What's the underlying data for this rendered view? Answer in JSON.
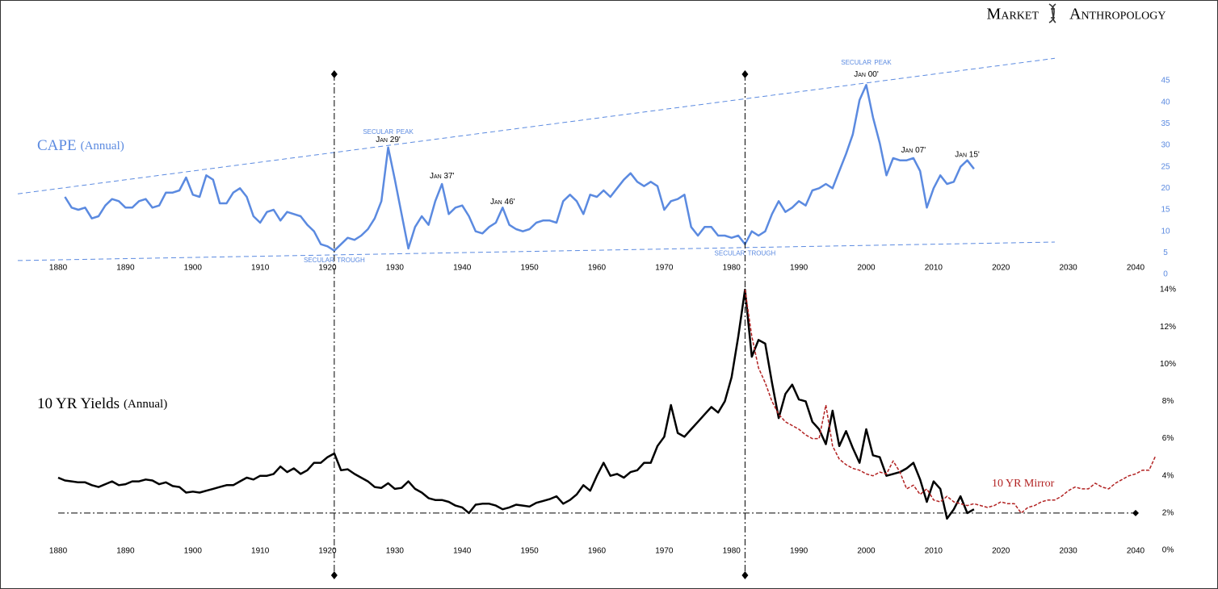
{
  "brand": {
    "left": "Market",
    "right": "Anthropology"
  },
  "chart_data": [
    {
      "type": "line",
      "series": [
        {
          "name": "CAPE",
          "name_suffix": "(Annual)",
          "color": "#5b8ae0",
          "x": [
            1881,
            1882,
            1883,
            1884,
            1885,
            1886,
            1887,
            1888,
            1889,
            1890,
            1891,
            1892,
            1893,
            1894,
            1895,
            1896,
            1897,
            1898,
            1899,
            1900,
            1901,
            1902,
            1903,
            1904,
            1905,
            1906,
            1907,
            1908,
            1909,
            1910,
            1911,
            1912,
            1913,
            1914,
            1915,
            1916,
            1917,
            1918,
            1919,
            1920,
            1921,
            1922,
            1923,
            1924,
            1925,
            1926,
            1927,
            1928,
            1929,
            1930,
            1931,
            1932,
            1933,
            1934,
            1935,
            1936,
            1937,
            1938,
            1939,
            1940,
            1941,
            1942,
            1943,
            1944,
            1945,
            1946,
            1947,
            1948,
            1949,
            1950,
            1951,
            1952,
            1953,
            1954,
            1955,
            1956,
            1957,
            1958,
            1959,
            1960,
            1961,
            1962,
            1963,
            1964,
            1965,
            1966,
            1967,
            1968,
            1969,
            1970,
            1971,
            1972,
            1973,
            1974,
            1975,
            1976,
            1977,
            1978,
            1979,
            1980,
            1981,
            1982,
            1983,
            1984,
            1985,
            1986,
            1987,
            1988,
            1989,
            1990,
            1991,
            1992,
            1993,
            1994,
            1995,
            1996,
            1997,
            1998,
            1999,
            2000,
            2001,
            2002,
            2003,
            2004,
            2005,
            2006,
            2007,
            2008,
            2009,
            2010,
            2011,
            2012,
            2013,
            2014,
            2015,
            2016
          ],
          "values": [
            18,
            15.5,
            15,
            15.5,
            13,
            13.5,
            16,
            17.5,
            17,
            15.5,
            15.5,
            17,
            17.5,
            15.5,
            16,
            19,
            19,
            19.5,
            22.5,
            18.5,
            18,
            23,
            22,
            16.5,
            16.5,
            19,
            20,
            18,
            13.5,
            12,
            14.5,
            15,
            12.5,
            14.5,
            14,
            13.5,
            11.5,
            10,
            7,
            6.5,
            5.5,
            7,
            8.5,
            8,
            9,
            10.5,
            13,
            17,
            29.5,
            22,
            14,
            6,
            11,
            13.5,
            11.5,
            17,
            21,
            14,
            15.5,
            16,
            13.5,
            10,
            9.5,
            11,
            12,
            15.5,
            11.5,
            10.5,
            10,
            10.5,
            12,
            12.5,
            12.5,
            12,
            17,
            18.5,
            17,
            14,
            18.5,
            18,
            19.5,
            18,
            20,
            22,
            23.5,
            21.5,
            20.5,
            21.5,
            20.5,
            15,
            17,
            17.5,
            18.5,
            11,
            9,
            11,
            11,
            9,
            9,
            8.5,
            9,
            7,
            10,
            9,
            10,
            14,
            17,
            14.5,
            15.5,
            17,
            16,
            19.5,
            20,
            21,
            20,
            24,
            28,
            32.5,
            40.5,
            44,
            36.5,
            30.5,
            23,
            27,
            26.5,
            26.5,
            27,
            24,
            15.5,
            20,
            23,
            21,
            21.5,
            25,
            26.5,
            24.5
          ]
        }
      ],
      "trend_lines": [
        {
          "x": [
            1874,
            2028
          ],
          "y": [
            18.7,
            50.2
          ]
        },
        {
          "x": [
            1874,
            2028
          ],
          "y": [
            3.2,
            7.5
          ]
        }
      ],
      "annotations": [
        {
          "text": "Secular Peak",
          "x": 1929,
          "y": 33.2,
          "style": "phase"
        },
        {
          "text": "Jan 29'",
          "x": 1929,
          "y": 31.2,
          "style": "date"
        },
        {
          "text": "Secular Trough",
          "x": 1921,
          "y": 3.4,
          "style": "phase"
        },
        {
          "text": "Jan 37'",
          "x": 1937,
          "y": 22.8,
          "style": "date"
        },
        {
          "text": "Jan 46'",
          "x": 1946,
          "y": 16.8,
          "style": "date"
        },
        {
          "text": "Secular Trough",
          "x": 1982,
          "y": 5,
          "style": "phase"
        },
        {
          "text": "Secular Peak",
          "x": 2000,
          "y": 49.3,
          "style": "phase"
        },
        {
          "text": "Jan 00'",
          "x": 2000,
          "y": 46.4,
          "style": "date"
        },
        {
          "text": "Jan 07'",
          "x": 2007,
          "y": 28.8,
          "style": "date"
        },
        {
          "text": "Jan 15'",
          "x": 2015,
          "y": 27.8,
          "style": "date"
        }
      ],
      "xlim": [
        1874,
        2043
      ],
      "xticks": [
        1880,
        1890,
        1900,
        1910,
        1920,
        1930,
        1940,
        1950,
        1960,
        1970,
        1980,
        1990,
        2000,
        2010,
        2020,
        2030,
        2040
      ],
      "ylim": [
        0,
        45
      ],
      "yticks": [
        0,
        5,
        10,
        15,
        20,
        25,
        30,
        35,
        40,
        45
      ]
    },
    {
      "type": "line",
      "series": [
        {
          "name": "10 YR Yields",
          "name_suffix": "(Annual)",
          "color": "#000000",
          "x": [
            1880,
            1881,
            1882,
            1883,
            1884,
            1885,
            1886,
            1887,
            1888,
            1889,
            1890,
            1891,
            1892,
            1893,
            1894,
            1895,
            1896,
            1897,
            1898,
            1899,
            1900,
            1901,
            1902,
            1903,
            1904,
            1905,
            1906,
            1907,
            1908,
            1909,
            1910,
            1911,
            1912,
            1913,
            1914,
            1915,
            1916,
            1917,
            1918,
            1919,
            1920,
            1921,
            1922,
            1923,
            1924,
            1925,
            1926,
            1927,
            1928,
            1929,
            1930,
            1931,
            1932,
            1933,
            1934,
            1935,
            1936,
            1937,
            1938,
            1939,
            1940,
            1941,
            1942,
            1943,
            1944,
            1945,
            1946,
            1947,
            1948,
            1949,
            1950,
            1951,
            1952,
            1953,
            1954,
            1955,
            1956,
            1957,
            1958,
            1959,
            1960,
            1961,
            1962,
            1963,
            1964,
            1965,
            1966,
            1967,
            1968,
            1969,
            1970,
            1971,
            1972,
            1973,
            1974,
            1975,
            1976,
            1977,
            1978,
            1979,
            1980,
            1981,
            1982,
            1983,
            1984,
            1985,
            1986,
            1987,
            1988,
            1989,
            1990,
            1991,
            1992,
            1993,
            1994,
            1995,
            1996,
            1997,
            1998,
            1999,
            2000,
            2001,
            2002,
            2003,
            2004,
            2005,
            2006,
            2007,
            2008,
            2009,
            2010,
            2011,
            2012,
            2013,
            2014,
            2015,
            2016
          ],
          "values": [
            3.9,
            3.75,
            3.7,
            3.65,
            3.65,
            3.5,
            3.4,
            3.55,
            3.7,
            3.5,
            3.55,
            3.7,
            3.7,
            3.8,
            3.75,
            3.55,
            3.65,
            3.45,
            3.4,
            3.1,
            3.15,
            3.1,
            3.2,
            3.3,
            3.4,
            3.5,
            3.5,
            3.7,
            3.9,
            3.8,
            4.0,
            4.0,
            4.1,
            4.5,
            4.2,
            4.4,
            4.1,
            4.3,
            4.7,
            4.7,
            5.0,
            5.2,
            4.3,
            4.35,
            4.1,
            3.9,
            3.7,
            3.4,
            3.35,
            3.6,
            3.3,
            3.35,
            3.7,
            3.3,
            3.1,
            2.8,
            2.7,
            2.7,
            2.6,
            2.4,
            2.3,
            2.0,
            2.45,
            2.5,
            2.5,
            2.4,
            2.2,
            2.3,
            2.45,
            2.4,
            2.35,
            2.55,
            2.65,
            2.75,
            2.9,
            2.5,
            2.7,
            3.0,
            3.5,
            3.2,
            4.0,
            4.7,
            4.0,
            4.1,
            3.9,
            4.2,
            4.3,
            4.7,
            4.7,
            5.6,
            6.1,
            7.8,
            6.3,
            6.1,
            6.5,
            6.9,
            7.3,
            7.7,
            7.4,
            8.0,
            9.3,
            11.5,
            14.0,
            10.4,
            11.3,
            11.1,
            9.0,
            7.1,
            8.4,
            8.9,
            8.1,
            8.0,
            6.9,
            6.5,
            5.7,
            7.5,
            5.6,
            6.4,
            5.5,
            4.7,
            6.5,
            5.1,
            5.0,
            4.0,
            4.1,
            4.2,
            4.4,
            4.7,
            3.8,
            2.6,
            3.7,
            3.3,
            1.7,
            2.2,
            2.9,
            2.0,
            2.2
          ]
        },
        {
          "name": "10 YR Mirror",
          "color": "#b22222",
          "dashed": true,
          "x": [
            1982,
            1983,
            1984,
            1985,
            1986,
            1987,
            1988,
            1989,
            1990,
            1991,
            1992,
            1993,
            1994,
            1995,
            1996,
            1997,
            1998,
            1999,
            2000,
            2001,
            2002,
            2003,
            2004,
            2005,
            2006,
            2007,
            2008,
            2009,
            2010,
            2011,
            2012,
            2013,
            2014,
            2015,
            2016,
            2017,
            2018,
            2019,
            2020,
            2021,
            2022,
            2023,
            2024,
            2025,
            2026,
            2027,
            2028,
            2029,
            2030,
            2031,
            2032,
            2033,
            2034,
            2035,
            2036,
            2037,
            2038,
            2039,
            2040,
            2041,
            2042,
            2043
          ],
          "values": [
            14,
            11.5,
            9.8,
            9.0,
            8.0,
            7.3,
            6.9,
            6.7,
            6.5,
            6.2,
            6.0,
            6.0,
            7.8,
            5.6,
            4.9,
            4.6,
            4.4,
            4.3,
            4.1,
            4.0,
            4.2,
            4.1,
            4.8,
            4.2,
            3.3,
            3.5,
            3.0,
            3.3,
            2.7,
            2.6,
            2.9,
            2.6,
            2.5,
            2.4,
            2.5,
            2.4,
            2.3,
            2.4,
            2.6,
            2.5,
            2.5,
            2.0,
            2.3,
            2.4,
            2.6,
            2.7,
            2.7,
            2.9,
            3.2,
            3.4,
            3.3,
            3.3,
            3.6,
            3.4,
            3.3,
            3.6,
            3.8,
            4.0,
            4.1,
            4.3,
            4.3,
            5.1
          ]
        }
      ],
      "vlines": [
        1921,
        1982
      ],
      "hline": {
        "y": 2,
        "x": [
          1880,
          2040
        ]
      },
      "xlim": [
        1874,
        2043
      ],
      "xticks": [
        1880,
        1890,
        1900,
        1910,
        1920,
        1930,
        1940,
        1950,
        1960,
        1970,
        1980,
        1990,
        2000,
        2010,
        2020,
        2030,
        2040
      ],
      "ylim": [
        0,
        14
      ],
      "yticks": [
        {
          "value": 0,
          "label": "0%"
        },
        {
          "value": 2,
          "label": "2%"
        },
        {
          "value": 4,
          "label": "4%"
        },
        {
          "value": 6,
          "label": "6%"
        },
        {
          "value": 8,
          "label": "8%"
        },
        {
          "value": 10,
          "label": "10%"
        },
        {
          "value": 12,
          "label": "12%"
        },
        {
          "value": 14,
          "label": "14%"
        }
      ]
    }
  ]
}
